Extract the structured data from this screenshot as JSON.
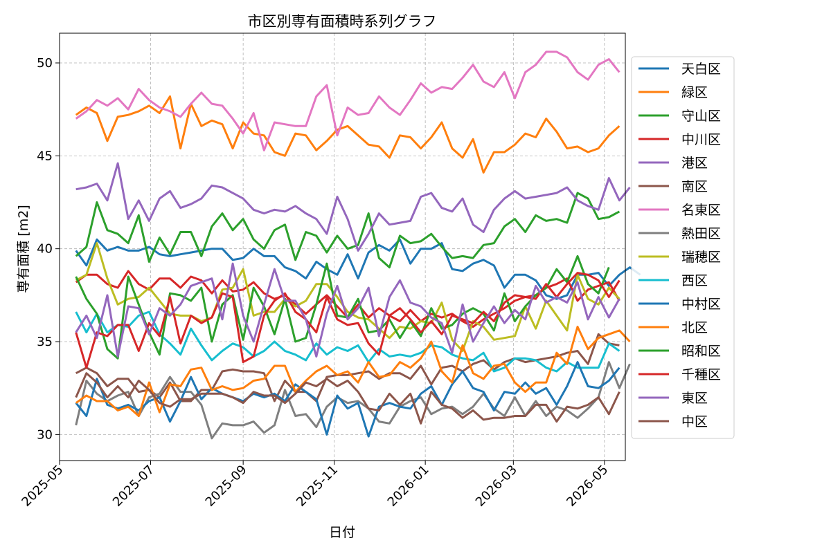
{
  "chart_data": {
    "type": "line",
    "title": "市区別専有面積時系列グラフ",
    "xlabel": "日付",
    "ylabel": "専有面積 [m2]",
    "xlim": [
      "2025-05-01",
      "2026-05-15"
    ],
    "ylim": [
      28.6,
      51.6
    ],
    "x_ticks": [
      "2025-05",
      "2025-07",
      "2025-09",
      "2025-11",
      "2026-01",
      "2026-03",
      "2026-05"
    ],
    "y_ticks": [
      30,
      35,
      40,
      45,
      50
    ],
    "grid": true,
    "legend_position": "right",
    "x_start": "2025-05-12",
    "x_step_days": 7,
    "series": [
      {
        "name": "天白区",
        "color": "#1f77b4",
        "values": [
          39.9,
          39.1,
          40.5,
          39.9,
          40.1,
          39.9,
          39.9,
          40.1,
          39.7,
          39.6,
          39.7,
          39.8,
          39.9,
          40.0,
          40.0,
          39.4,
          39.5,
          40.0,
          39.6,
          39.6,
          39.0,
          38.8,
          38.4,
          39.3,
          38.9,
          38.6,
          39.7,
          38.4,
          39.8,
          40.2,
          39.9,
          40.5,
          39.2,
          40.0,
          40.0,
          40.3,
          38.9,
          38.8,
          39.2,
          39.4,
          39.1,
          37.9,
          38.6,
          38.6,
          38.3,
          37.5,
          37.3,
          37.5,
          38.6,
          38.6,
          38.7,
          38.0,
          38.6,
          39.0,
          38.6
        ]
      },
      {
        "name": "緑区",
        "color": "#ff7f0e",
        "values": [
          47.2,
          47.6,
          47.3,
          45.8,
          47.1,
          47.2,
          47.4,
          47.7,
          47.3,
          48.2,
          45.4,
          47.8,
          46.6,
          46.9,
          46.7,
          45.4,
          46.8,
          46.2,
          46.1,
          45.2,
          45.0,
          46.2,
          46.1,
          45.3,
          45.8,
          46.4,
          46.6,
          46.1,
          45.6,
          45.5,
          44.9,
          46.1,
          46.0,
          45.4,
          46.0,
          46.8,
          45.4,
          44.9,
          45.9,
          44.1,
          45.2,
          45.2,
          45.6,
          46.2,
          46.0,
          47.0,
          46.3,
          45.4,
          45.5,
          45.2,
          45.4,
          46.1,
          46.6
        ]
      },
      {
        "name": "守山区",
        "color": "#2ca02c",
        "values": [
          39.6,
          40.1,
          42.5,
          41.0,
          40.8,
          40.3,
          41.8,
          39.3,
          40.6,
          39.7,
          40.9,
          40.9,
          39.6,
          41.2,
          41.9,
          41.0,
          41.6,
          40.5,
          40.0,
          41.0,
          41.3,
          39.4,
          40.9,
          40.7,
          39.8,
          40.7,
          40.0,
          40.2,
          41.9,
          39.5,
          39.0,
          40.7,
          40.3,
          40.4,
          40.8,
          40.1,
          39.5,
          39.6,
          39.5,
          40.2,
          40.3,
          41.2,
          41.6,
          40.9,
          41.8,
          41.5,
          41.6,
          41.4,
          43.0,
          42.7,
          41.6,
          41.7,
          42.0
        ]
      },
      {
        "name": "中川区",
        "color": "#d62728",
        "values": [
          38.2,
          38.6,
          38.6,
          38.1,
          37.9,
          38.8,
          38.1,
          37.8,
          38.4,
          38.4,
          37.9,
          38.5,
          38.3,
          37.6,
          38.3,
          37.7,
          37.8,
          38.2,
          37.6,
          37.3,
          37.5,
          37.0,
          36.5,
          37.0,
          37.5,
          36.9,
          36.3,
          37.0,
          36.3,
          36.8,
          36.4,
          36.1,
          36.7,
          36.1,
          36.5,
          36.3,
          36.5,
          36.1,
          35.8,
          36.2,
          36.5,
          36.8,
          37.2,
          37.4,
          37.5,
          37.9,
          38.1,
          38.4,
          37.2,
          37.8,
          38.0,
          38.2,
          37.2
        ]
      },
      {
        "name": "港区",
        "color": "#9467bd",
        "values": [
          43.2,
          43.3,
          43.5,
          42.6,
          44.6,
          41.6,
          42.6,
          41.5,
          42.7,
          43.1,
          42.2,
          42.4,
          42.7,
          43.4,
          43.3,
          43.0,
          42.7,
          42.1,
          41.9,
          42.1,
          42.0,
          42.3,
          41.9,
          41.6,
          40.8,
          42.8,
          41.6,
          39.9,
          40.8,
          41.9,
          41.3,
          41.4,
          41.5,
          42.8,
          43.0,
          42.2,
          42.0,
          42.7,
          41.3,
          40.9,
          42.1,
          42.7,
          43.1,
          42.7,
          42.8,
          42.9,
          43.0,
          43.3,
          42.6,
          42.3,
          42.1,
          43.8,
          42.6,
          43.3
        ]
      },
      {
        "name": "南区",
        "color": "#8c564b",
        "values": [
          33.3,
          33.6,
          33.3,
          32.6,
          33.0,
          33.0,
          32.3,
          32.4,
          32.0,
          32.8,
          31.8,
          31.8,
          32.4,
          32.4,
          33.4,
          33.5,
          33.4,
          33.4,
          33.3,
          31.8,
          32.9,
          32.3,
          32.3,
          31.8,
          33.1,
          33.2,
          33.2,
          33.3,
          33.4,
          33.0,
          33.3,
          33.3,
          33.0,
          33.7,
          32.7,
          33.6,
          33.7,
          33.4,
          33.8,
          34.0,
          33.5,
          33.9,
          34.1,
          33.9,
          34.0,
          34.1,
          34.2,
          34.4,
          34.5,
          33.8,
          35.4,
          34.9,
          34.8
        ]
      },
      {
        "name": "名東区",
        "color": "#e377c2",
        "values": [
          47.0,
          47.4,
          48.0,
          47.7,
          48.1,
          47.5,
          48.6,
          48.0,
          47.6,
          47.4,
          47.1,
          47.8,
          48.4,
          47.8,
          47.7,
          47.0,
          46.2,
          47.3,
          45.3,
          46.8,
          46.7,
          46.6,
          46.6,
          48.2,
          48.8,
          46.1,
          47.6,
          47.2,
          47.3,
          48.2,
          47.6,
          47.2,
          48.0,
          48.9,
          48.4,
          48.7,
          48.6,
          49.2,
          49.9,
          49.0,
          48.7,
          49.5,
          48.1,
          49.5,
          49.9,
          50.6,
          50.6,
          50.3,
          49.5,
          49.1,
          49.9,
          50.2,
          49.5
        ]
      },
      {
        "name": "熱田区",
        "color": "#7f7f7f",
        "values": [
          30.5,
          32.9,
          32.2,
          31.8,
          32.1,
          32.3,
          31.0,
          32.0,
          32.2,
          33.1,
          32.3,
          32.3,
          31.6,
          29.8,
          30.6,
          30.5,
          30.5,
          30.7,
          30.1,
          30.5,
          32.4,
          31.0,
          31.1,
          30.4,
          31.5,
          32.0,
          31.7,
          31.8,
          31.4,
          30.7,
          30.6,
          31.5,
          31.8,
          32.0,
          31.1,
          31.4,
          31.5,
          31.1,
          31.5,
          32.2,
          31.4,
          31.0,
          32.0,
          31.0,
          31.8,
          31.0,
          31.5,
          31.3,
          30.9,
          31.4,
          32.0,
          33.9,
          32.5,
          33.8
        ]
      },
      {
        "name": "瑞穂区",
        "color": "#bcbd22",
        "values": [
          38.3,
          38.6,
          40.3,
          38.4,
          37.0,
          37.3,
          37.4,
          37.9,
          37.2,
          36.5,
          36.4,
          36.4,
          36.1,
          36.3,
          37.8,
          37.9,
          38.9,
          36.4,
          36.6,
          36.6,
          37.3,
          36.9,
          37.2,
          38.1,
          38.1,
          37.4,
          36.6,
          36.3,
          36.2,
          35.7,
          35.2,
          35.8,
          35.7,
          36.1,
          36.0,
          37.1,
          35.1,
          34.5,
          36.1,
          35.8,
          35.1,
          35.2,
          35.3,
          36.9,
          35.7,
          37.2,
          36.4,
          35.6,
          38.6,
          37.3,
          37.0,
          37.9,
          37.3
        ]
      },
      {
        "name": "西区",
        "color": "#17becf",
        "values": [
          36.6,
          35.5,
          36.5,
          35.5,
          35.9,
          35.8,
          36.4,
          36.6,
          35.4,
          34.9,
          34.3,
          35.7,
          34.8,
          34.0,
          34.5,
          34.9,
          34.7,
          34.2,
          34.5,
          35.0,
          34.5,
          34.3,
          34.0,
          34.9,
          34.3,
          34.7,
          34.5,
          34.8,
          33.9,
          34.6,
          34.2,
          34.3,
          34.2,
          34.4,
          34.8,
          34.7,
          34.3,
          34.1,
          34.0,
          34.4,
          33.4,
          33.6,
          34.1,
          34.1,
          34.0,
          33.6,
          33.4,
          33.9,
          33.6,
          33.6,
          33.6,
          34.9,
          34.5
        ]
      },
      {
        "name": "中村区",
        "color": "#1f77b4",
        "values": [
          31.7,
          31.0,
          33.0,
          31.6,
          31.4,
          31.6,
          31.3,
          31.8,
          32.0,
          30.7,
          31.8,
          33.1,
          31.9,
          32.5,
          32.2,
          32.0,
          31.8,
          32.2,
          32.0,
          32.2,
          31.8,
          32.7,
          32.3,
          31.9,
          30.0,
          32.1,
          31.4,
          31.7,
          29.9,
          31.5,
          31.7,
          31.5,
          31.4,
          32.2,
          32.6,
          31.6,
          32.7,
          33.4,
          32.5,
          32.3,
          31.3,
          32.3,
          32.2,
          32.8,
          32.2,
          32.5,
          31.6,
          32.6,
          33.9,
          32.6,
          32.5,
          32.9,
          33.6
        ]
      },
      {
        "name": "北区",
        "color": "#ff7f0e",
        "values": [
          31.7,
          32.1,
          31.8,
          31.8,
          31.3,
          31.5,
          31.0,
          32.8,
          31.2,
          32.7,
          32.6,
          33.5,
          33.6,
          32.4,
          32.6,
          32.4,
          32.5,
          32.9,
          33.0,
          33.7,
          33.7,
          32.3,
          32.9,
          33.4,
          33.7,
          33.2,
          33.4,
          32.8,
          33.9,
          33.1,
          33.2,
          33.9,
          33.6,
          34.1,
          35.0,
          33.4,
          32.8,
          34.8,
          33.3,
          33.0,
          33.7,
          33.8,
          32.8,
          32.3,
          32.8,
          32.8,
          34.4,
          33.8,
          35.8,
          34.6,
          35.2,
          35.4,
          35.6,
          35.0
        ]
      },
      {
        "name": "昭和区",
        "color": "#2ca02c",
        "values": [
          38.5,
          37.3,
          36.5,
          34.6,
          34.1,
          38.5,
          37.0,
          35.5,
          34.3,
          37.6,
          37.5,
          37.2,
          37.9,
          35.0,
          37.0,
          37.5,
          35.1,
          37.9,
          36.9,
          35.4,
          37.3,
          35.0,
          35.2,
          37.0,
          39.2,
          36.4,
          36.3,
          37.3,
          35.5,
          35.6,
          36.2,
          35.2,
          36.1,
          35.3,
          36.8,
          35.7,
          35.9,
          36.5,
          36.8,
          36.5,
          35.6,
          37.6,
          36.1,
          36.9,
          37.5,
          37.9,
          38.9,
          38.2,
          39.6,
          38.1,
          37.6,
          39.0
        ]
      },
      {
        "name": "千種区",
        "color": "#d62728",
        "values": [
          35.5,
          33.6,
          35.5,
          35.3,
          35.9,
          35.9,
          34.5,
          36.0,
          35.3,
          37.4,
          34.9,
          36.4,
          36.0,
          36.3,
          37.6,
          37.4,
          33.9,
          34.2,
          36.4,
          37.2,
          37.6,
          36.6,
          36.2,
          35.5,
          37.4,
          36.2,
          35.9,
          36.0,
          34.9,
          34.3,
          36.4,
          36.8,
          36.2,
          35.5,
          36.1,
          35.4,
          36.4,
          36.2,
          36.0,
          36.6,
          36.1,
          37.1,
          37.5,
          37.4,
          37.3,
          38.1,
          37.4,
          38.1,
          38.7,
          38.6,
          38.3,
          37.4,
          38.3
        ]
      },
      {
        "name": "東区",
        "color": "#9467bd",
        "values": [
          35.5,
          36.4,
          35.2,
          37.5,
          34.2,
          36.9,
          36.8,
          35.4,
          36.8,
          36.4,
          37.0,
          38.0,
          38.2,
          38.4,
          36.2,
          39.2,
          36.4,
          35.0,
          37.0,
          38.9,
          37.2,
          37.2,
          36.2,
          34.2,
          36.5,
          38.0,
          36.2,
          36.8,
          37.9,
          35.3,
          37.4,
          38.3,
          37.1,
          36.9,
          36.3,
          36.0,
          34.4,
          37.0,
          35.0,
          36.0,
          36.9,
          36.0,
          36.7,
          36.2,
          38.0,
          37.1,
          37.4,
          37.1,
          38.2,
          36.2,
          37.4,
          36.3,
          37.3
        ]
      },
      {
        "name": "中区",
        "color": "#8c564b",
        "values": [
          32.0,
          33.3,
          32.8,
          32.0,
          32.6,
          32.0,
          32.9,
          32.4,
          31.7,
          31.5,
          31.9,
          31.9,
          32.2,
          32.2,
          32.2,
          32.0,
          31.7,
          32.3,
          32.1,
          32.1,
          31.7,
          32.2,
          32.8,
          32.6,
          33.0,
          32.6,
          32.9,
          32.3,
          31.4,
          31.3,
          32.2,
          31.6,
          32.2,
          30.6,
          32.3,
          31.6,
          31.4,
          30.9,
          31.3,
          30.8,
          30.9,
          30.9,
          31.0,
          31.0,
          31.6,
          31.6,
          30.7,
          31.5,
          31.4,
          31.6,
          32.0,
          31.1,
          32.3
        ]
      }
    ]
  }
}
